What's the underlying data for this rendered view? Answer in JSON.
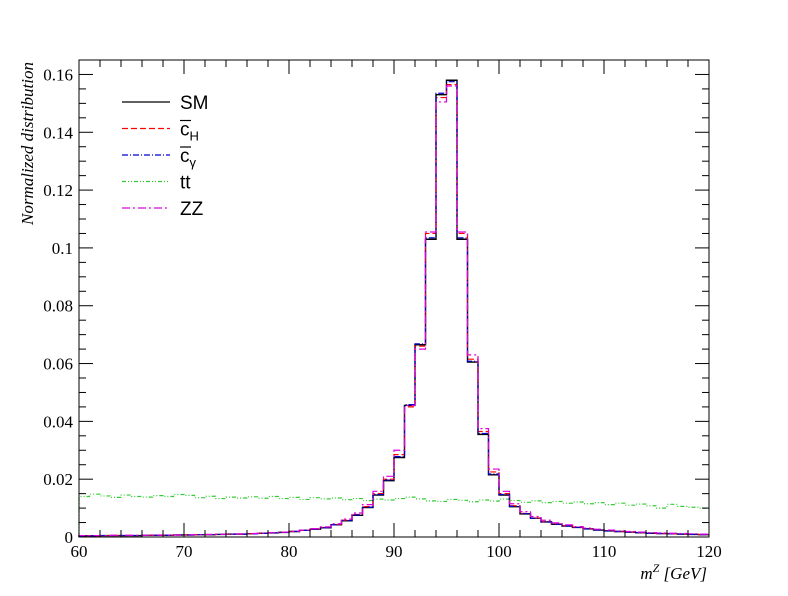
{
  "chart_data": {
    "type": "line",
    "xlabel": "m",
    "xlabel_sup": "Z",
    "xlabel_unit": " [GeV]",
    "ylabel": "Normalized distribution",
    "xlim": [
      60,
      120
    ],
    "ylim": [
      0,
      0.165
    ],
    "grid": false,
    "legend_position": "top-left",
    "x_ticks": [
      60,
      70,
      80,
      90,
      100,
      110,
      120
    ],
    "x_tick_labels": [
      "60",
      "70",
      "80",
      "90",
      "100",
      "110",
      "120"
    ],
    "y_ticks": [
      0,
      0.02,
      0.04,
      0.06,
      0.08,
      0.1,
      0.12,
      0.14,
      0.16
    ],
    "y_tick_labels": [
      "0",
      "0.02",
      "0.04",
      "0.06",
      "0.08",
      "0.1",
      "0.12",
      "0.14",
      "0.16"
    ],
    "bin_edges_x": [
      60,
      61,
      62,
      63,
      64,
      65,
      66,
      67,
      68,
      69,
      70,
      71,
      72,
      73,
      74,
      75,
      76,
      77,
      78,
      79,
      80,
      81,
      82,
      83,
      84,
      85,
      86,
      87,
      88,
      89,
      90,
      91,
      92,
      93,
      94,
      95,
      96,
      97,
      98,
      99,
      100,
      101,
      102,
      103,
      104,
      105,
      106,
      107,
      108,
      109,
      110,
      111,
      112,
      113,
      114,
      115,
      116,
      117,
      118,
      119,
      120
    ],
    "series": [
      {
        "name": "SM",
        "label_main": "SM",
        "label_sub": "",
        "overline": false,
        "color": "#000000",
        "dash": "",
        "values": [
          0.0004,
          0.0004,
          0.0005,
          0.0005,
          0.0005,
          0.0005,
          0.0006,
          0.0006,
          0.0006,
          0.0007,
          0.0007,
          0.0008,
          0.0008,
          0.0009,
          0.001,
          0.001,
          0.0011,
          0.0013,
          0.0014,
          0.0016,
          0.0019,
          0.0023,
          0.0027,
          0.0032,
          0.0042,
          0.0056,
          0.0075,
          0.0102,
          0.0145,
          0.0195,
          0.0275,
          0.0455,
          0.0665,
          0.103,
          0.153,
          0.158,
          0.103,
          0.0605,
          0.0355,
          0.0215,
          0.0145,
          0.0105,
          0.008,
          0.0065,
          0.0052,
          0.0044,
          0.0038,
          0.0033,
          0.0028,
          0.0024,
          0.0021,
          0.0019,
          0.0017,
          0.0015,
          0.0013,
          0.0012,
          0.0011,
          0.001,
          0.0009,
          0.0008
        ]
      },
      {
        "name": "cH",
        "label_main": "c",
        "label_sub": "H",
        "overline": true,
        "color": "#ff0000",
        "dash": "6,3",
        "values": [
          0.0004,
          0.0004,
          0.0005,
          0.0005,
          0.0005,
          0.0005,
          0.0006,
          0.0006,
          0.0006,
          0.0007,
          0.0007,
          0.0008,
          0.0008,
          0.0009,
          0.001,
          0.001,
          0.0011,
          0.0013,
          0.0014,
          0.0016,
          0.0019,
          0.0023,
          0.0027,
          0.0033,
          0.0043,
          0.0058,
          0.0078,
          0.0105,
          0.015,
          0.02,
          0.0285,
          0.045,
          0.066,
          0.105,
          0.152,
          0.1565,
          0.105,
          0.0615,
          0.0365,
          0.0225,
          0.015,
          0.0108,
          0.0082,
          0.0066,
          0.0053,
          0.0045,
          0.0039,
          0.0034,
          0.0029,
          0.0025,
          0.0022,
          0.0019,
          0.0017,
          0.0015,
          0.0013,
          0.0012,
          0.0011,
          0.001,
          0.0009,
          0.0008
        ]
      },
      {
        "name": "cgamma",
        "label_main": "c",
        "label_sub": "γ",
        "overline": true,
        "color": "#0000cc",
        "dash": "6,2,1,2",
        "values": [
          0.0004,
          0.0004,
          0.0005,
          0.0005,
          0.0005,
          0.0005,
          0.0006,
          0.0006,
          0.0006,
          0.0007,
          0.0007,
          0.0008,
          0.0008,
          0.0009,
          0.001,
          0.001,
          0.0011,
          0.0013,
          0.0014,
          0.0016,
          0.0019,
          0.0023,
          0.0027,
          0.0032,
          0.0042,
          0.0057,
          0.0076,
          0.0103,
          0.0147,
          0.0197,
          0.0278,
          0.0458,
          0.0668,
          0.1035,
          0.1535,
          0.1575,
          0.1035,
          0.0608,
          0.0358,
          0.0218,
          0.0147,
          0.0106,
          0.0081,
          0.0065,
          0.0052,
          0.0044,
          0.0038,
          0.0033,
          0.0028,
          0.0024,
          0.0021,
          0.0019,
          0.0017,
          0.0015,
          0.0013,
          0.0012,
          0.0011,
          0.001,
          0.0009,
          0.0008
        ]
      },
      {
        "name": "tt",
        "label_main": "tt",
        "label_sub": "",
        "overline": false,
        "color": "#33cc33",
        "dash": "4,2,1,2,1,2",
        "values": [
          0.014,
          0.0148,
          0.0142,
          0.0137,
          0.0145,
          0.014,
          0.0138,
          0.0143,
          0.014,
          0.0147,
          0.0144,
          0.0136,
          0.0141,
          0.0133,
          0.0138,
          0.0135,
          0.0139,
          0.0134,
          0.014,
          0.0133,
          0.0137,
          0.013,
          0.0136,
          0.0132,
          0.0135,
          0.0129,
          0.0133,
          0.0126,
          0.0131,
          0.0128,
          0.0133,
          0.0138,
          0.0132,
          0.0125,
          0.0123,
          0.013,
          0.0127,
          0.0122,
          0.0128,
          0.0124,
          0.0131,
          0.0126,
          0.012,
          0.0125,
          0.0119,
          0.0123,
          0.0117,
          0.0121,
          0.0115,
          0.0119,
          0.0112,
          0.0117,
          0.011,
          0.0114,
          0.0108,
          0.01,
          0.0113,
          0.0106,
          0.0103,
          0.01
        ]
      },
      {
        "name": "ZZ",
        "label_main": "ZZ",
        "label_sub": "",
        "overline": false,
        "color": "#dd00dd",
        "dash": "8,3,2,3",
        "values": [
          0.0005,
          0.0005,
          0.0005,
          0.0006,
          0.0006,
          0.0006,
          0.0006,
          0.0007,
          0.0007,
          0.0007,
          0.0008,
          0.0008,
          0.0009,
          0.0009,
          0.001,
          0.0011,
          0.0012,
          0.0013,
          0.0015,
          0.0017,
          0.002,
          0.0024,
          0.0029,
          0.0035,
          0.0046,
          0.0062,
          0.0083,
          0.0112,
          0.0158,
          0.021,
          0.03,
          0.0455,
          0.065,
          0.1055,
          0.1505,
          0.156,
          0.1055,
          0.063,
          0.0375,
          0.0235,
          0.0158,
          0.0115,
          0.0088,
          0.0071,
          0.0058,
          0.0049,
          0.0042,
          0.0036,
          0.0031,
          0.0027,
          0.0024,
          0.0021,
          0.0019,
          0.0017,
          0.0015,
          0.0014,
          0.0013,
          0.0012,
          0.0011,
          0.001
        ]
      }
    ]
  }
}
